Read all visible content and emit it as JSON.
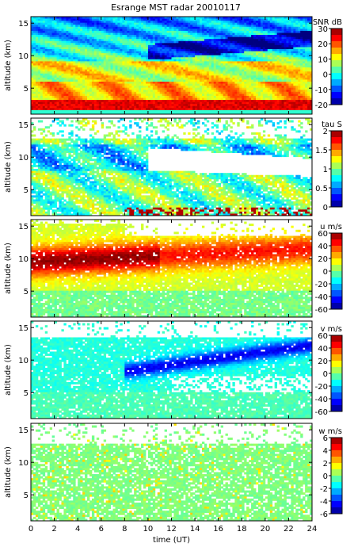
{
  "chart_data": [
    {
      "type": "heatmap",
      "title": "Esrange MST radar 20010117",
      "ylabel": "altitude (km)",
      "xlabel": "",
      "x_range": [
        0,
        24
      ],
      "ylim": [
        1,
        16
      ],
      "yticks": [
        "5",
        "10",
        "15"
      ],
      "xticks": [],
      "colorbar": {
        "label": "SNR dB",
        "range": [
          -20,
          30
        ],
        "ticks": [
          "30",
          "20",
          "10",
          "0",
          "-10",
          "-20"
        ]
      },
      "colormap": "jet"
    },
    {
      "type": "heatmap",
      "title": "",
      "ylabel": "altitude (km)",
      "xlabel": "",
      "x_range": [
        0,
        24
      ],
      "ylim": [
        1,
        16
      ],
      "yticks": [
        "5",
        "10",
        "15"
      ],
      "xticks": [],
      "colorbar": {
        "label": "tau S",
        "range": [
          0,
          2
        ],
        "ticks": [
          "2",
          "1.5",
          "1",
          "0.5",
          "0"
        ]
      },
      "colormap": "jet"
    },
    {
      "type": "heatmap",
      "title": "",
      "ylabel": "altitude (km)",
      "xlabel": "",
      "x_range": [
        0,
        24
      ],
      "ylim": [
        1,
        16
      ],
      "yticks": [
        "5",
        "10",
        "15"
      ],
      "xticks": [],
      "colorbar": {
        "label": "u m/s",
        "range": [
          -60,
          60
        ],
        "ticks": [
          "60",
          "40",
          "20",
          "0",
          "-20",
          "-40",
          "-60"
        ]
      },
      "colormap": "jet"
    },
    {
      "type": "heatmap",
      "title": "",
      "ylabel": "altitude (km)",
      "xlabel": "",
      "x_range": [
        0,
        24
      ],
      "ylim": [
        1,
        16
      ],
      "yticks": [
        "5",
        "10",
        "15"
      ],
      "xticks": [],
      "colorbar": {
        "label": "v m/s",
        "range": [
          -60,
          60
        ],
        "ticks": [
          "60",
          "40",
          "20",
          "0",
          "-20",
          "-40",
          "-60"
        ]
      },
      "colormap": "jet"
    },
    {
      "type": "heatmap",
      "title": "",
      "ylabel": "altitude (km)",
      "xlabel": "time (UT)",
      "x_range": [
        0,
        24
      ],
      "ylim": [
        1,
        16
      ],
      "yticks": [
        "5",
        "10",
        "15"
      ],
      "xticks": [
        "0",
        "2",
        "4",
        "6",
        "8",
        "10",
        "12",
        "14",
        "16",
        "18",
        "20",
        "22",
        "24"
      ],
      "colorbar": {
        "label": "w m/s",
        "range": [
          -6,
          6
        ],
        "ticks": [
          "6",
          "4",
          "2",
          "0",
          "-2",
          "-4",
          "-6"
        ]
      },
      "colormap": "jet"
    }
  ]
}
